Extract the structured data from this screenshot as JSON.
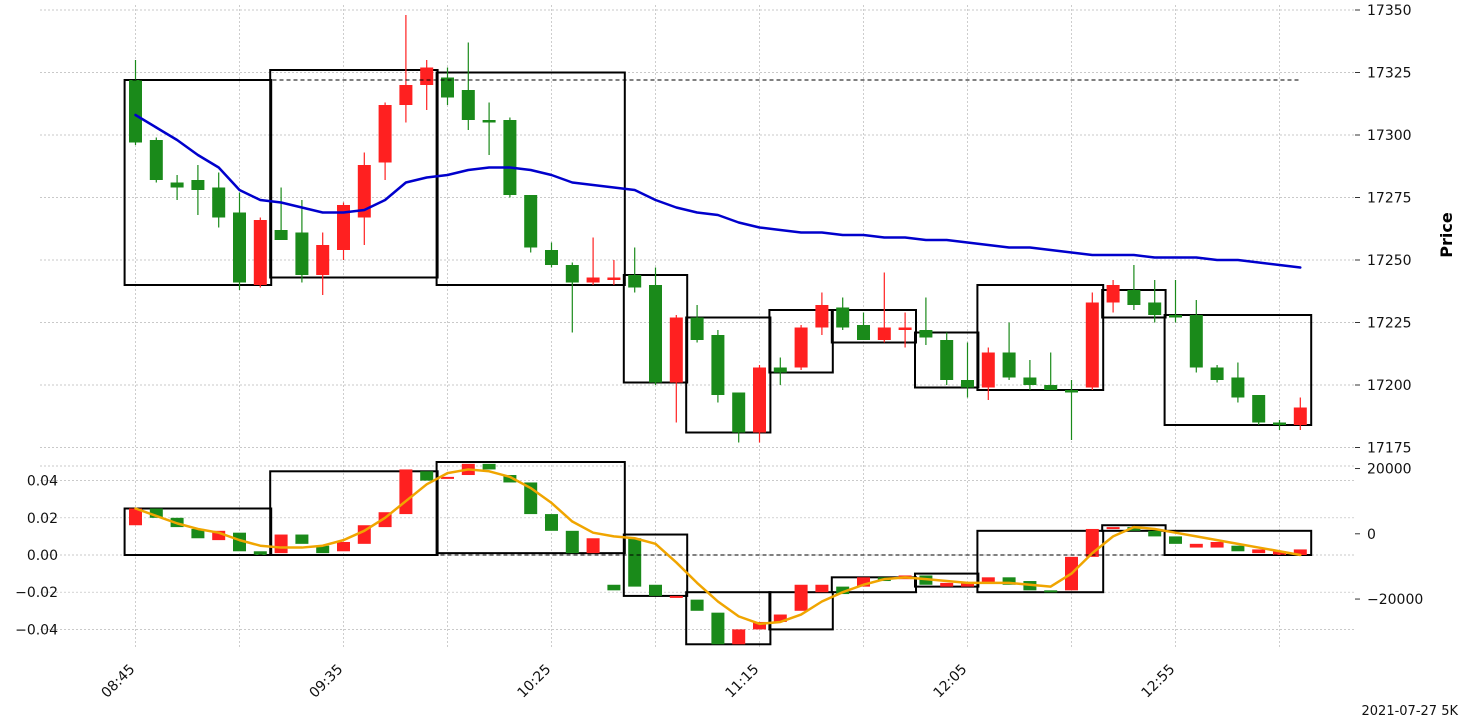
{
  "chart_data": [
    {
      "type": "candlestick",
      "panel": "price",
      "ylabel": "Price",
      "y_axis_side": "right",
      "ylim": [
        17170,
        17352
      ],
      "y_ticks": [
        17175,
        17200,
        17225,
        17250,
        17275,
        17300,
        17325,
        17350
      ],
      "grid": true,
      "candles": [
        {
          "o": 17297,
          "h": 17330,
          "l": 17296,
          "c": 17322,
          "color": "green"
        },
        {
          "o": 17282,
          "h": 17299,
          "l": 17281,
          "c": 17298,
          "color": "green"
        },
        {
          "o": 17279,
          "h": 17284,
          "l": 17274,
          "c": 17281,
          "color": "green"
        },
        {
          "o": 17278,
          "h": 17288,
          "l": 17268,
          "c": 17282,
          "color": "green"
        },
        {
          "o": 17267,
          "h": 17285,
          "l": 17263,
          "c": 17279,
          "color": "green"
        },
        {
          "o": 17241,
          "h": 17277,
          "l": 17238,
          "c": 17269,
          "color": "green"
        },
        {
          "o": 17266,
          "h": 17267,
          "l": 17239,
          "c": 17240,
          "color": "red"
        },
        {
          "o": 17262,
          "h": 17279,
          "l": 17258,
          "c": 17258,
          "color": "green"
        },
        {
          "o": 17244,
          "h": 17274,
          "l": 17241,
          "c": 17261,
          "color": "green"
        },
        {
          "o": 17256,
          "h": 17261,
          "l": 17236,
          "c": 17244,
          "color": "red"
        },
        {
          "o": 17272,
          "h": 17273,
          "l": 17250,
          "c": 17254,
          "color": "red"
        },
        {
          "o": 17288,
          "h": 17293,
          "l": 17256,
          "c": 17267,
          "color": "red"
        },
        {
          "o": 17312,
          "h": 17313,
          "l": 17282,
          "c": 17289,
          "color": "red"
        },
        {
          "o": 17320,
          "h": 17348,
          "l": 17305,
          "c": 17312,
          "color": "red"
        },
        {
          "o": 17327,
          "h": 17330,
          "l": 17310,
          "c": 17320,
          "color": "red"
        },
        {
          "o": 17315,
          "h": 17327,
          "l": 17312,
          "c": 17323,
          "color": "green"
        },
        {
          "o": 17306,
          "h": 17337,
          "l": 17302,
          "c": 17318,
          "color": "green"
        },
        {
          "o": 17305,
          "h": 17313,
          "l": 17292,
          "c": 17306,
          "color": "green"
        },
        {
          "o": 17276,
          "h": 17307,
          "l": 17275,
          "c": 17306,
          "color": "green"
        },
        {
          "o": 17255,
          "h": 17276,
          "l": 17253,
          "c": 17276,
          "color": "green"
        },
        {
          "o": 17248,
          "h": 17257,
          "l": 17247,
          "c": 17254,
          "color": "green"
        },
        {
          "o": 17241,
          "h": 17249,
          "l": 17221,
          "c": 17248,
          "color": "green"
        },
        {
          "o": 17241,
          "h": 17259,
          "l": 17240,
          "c": 17243,
          "color": "red"
        },
        {
          "o": 17243,
          "h": 17250,
          "l": 17240,
          "c": 17242,
          "color": "red"
        },
        {
          "o": 17239,
          "h": 17255,
          "l": 17237,
          "c": 17244,
          "color": "green"
        },
        {
          "o": 17201,
          "h": 17247,
          "l": 17200,
          "c": 17240,
          "color": "green"
        },
        {
          "o": 17227,
          "h": 17228,
          "l": 17185,
          "c": 17201,
          "color": "red"
        },
        {
          "o": 17218,
          "h": 17232,
          "l": 17217,
          "c": 17227,
          "color": "green"
        },
        {
          "o": 17196,
          "h": 17222,
          "l": 17193,
          "c": 17220,
          "color": "green"
        },
        {
          "o": 17181,
          "h": 17197,
          "l": 17177,
          "c": 17197,
          "color": "green"
        },
        {
          "o": 17207,
          "h": 17208,
          "l": 17177,
          "c": 17181,
          "color": "red"
        },
        {
          "o": 17205,
          "h": 17211,
          "l": 17200,
          "c": 17207,
          "color": "green"
        },
        {
          "o": 17223,
          "h": 17224,
          "l": 17206,
          "c": 17207,
          "color": "red"
        },
        {
          "o": 17232,
          "h": 17237,
          "l": 17220,
          "c": 17223,
          "color": "red"
        },
        {
          "o": 17223,
          "h": 17235,
          "l": 17222,
          "c": 17231,
          "color": "green"
        },
        {
          "o": 17218,
          "h": 17229,
          "l": 17218,
          "c": 17224,
          "color": "green"
        },
        {
          "o": 17223,
          "h": 17245,
          "l": 17217,
          "c": 17218,
          "color": "red"
        },
        {
          "o": 17222,
          "h": 17229,
          "l": 17215,
          "c": 17223,
          "color": "red"
        },
        {
          "o": 17219,
          "h": 17235,
          "l": 17216,
          "c": 17222,
          "color": "green"
        },
        {
          "o": 17202,
          "h": 17221,
          "l": 17200,
          "c": 17218,
          "color": "green"
        },
        {
          "o": 17199,
          "h": 17217,
          "l": 17195,
          "c": 17202,
          "color": "green"
        },
        {
          "o": 17213,
          "h": 17215,
          "l": 17194,
          "c": 17199,
          "color": "red"
        },
        {
          "o": 17203,
          "h": 17225,
          "l": 17202,
          "c": 17213,
          "color": "green"
        },
        {
          "o": 17200,
          "h": 17210,
          "l": 17198,
          "c": 17203,
          "color": "green"
        },
        {
          "o": 17198,
          "h": 17213,
          "l": 17198,
          "c": 17200,
          "color": "green"
        },
        {
          "o": 17197,
          "h": 17202,
          "l": 17178,
          "c": 17198,
          "color": "green"
        },
        {
          "o": 17233,
          "h": 17237,
          "l": 17198,
          "c": 17199,
          "color": "red"
        },
        {
          "o": 17240,
          "h": 17242,
          "l": 17229,
          "c": 17233,
          "color": "red"
        },
        {
          "o": 17232,
          "h": 17248,
          "l": 17230,
          "c": 17238,
          "color": "green"
        },
        {
          "o": 17228,
          "h": 17242,
          "l": 17225,
          "c": 17233,
          "color": "green"
        },
        {
          "o": 17227,
          "h": 17242,
          "l": 17225,
          "c": 17228,
          "color": "green"
        },
        {
          "o": 17207,
          "h": 17234,
          "l": 17205,
          "c": 17228,
          "color": "green"
        },
        {
          "o": 17202,
          "h": 17208,
          "l": 17201,
          "c": 17207,
          "color": "green"
        },
        {
          "o": 17195,
          "h": 17209,
          "l": 17193,
          "c": 17203,
          "color": "green"
        },
        {
          "o": 17185,
          "h": 17196,
          "l": 17184,
          "c": 17196,
          "color": "green"
        },
        {
          "o": 17184,
          "h": 17186,
          "l": 17182,
          "c": 17185,
          "color": "green"
        },
        {
          "o": 17191,
          "h": 17195,
          "l": 17182,
          "c": 17184,
          "color": "red"
        }
      ],
      "ma_line": {
        "color": "#0000cc",
        "values": [
          17308,
          17303,
          17298,
          17292,
          17287,
          17278,
          17274,
          17273,
          17271,
          17269,
          17269,
          17270,
          17274,
          17281,
          17283,
          17284,
          17286,
          17287,
          17287,
          17286,
          17284,
          17281,
          17280,
          17279,
          17278,
          17274,
          17271,
          17269,
          17268,
          17265,
          17263,
          17262,
          17261,
          17261,
          17260,
          17260,
          17259,
          17259,
          17258,
          17258,
          17257,
          17256,
          17255,
          17255,
          17254,
          17253,
          17252,
          17252,
          17252,
          17251,
          17251,
          17251,
          17250,
          17250,
          17249,
          17248,
          17247
        ]
      },
      "boxes": [
        {
          "start": 0,
          "end": 6,
          "low": 17240,
          "high": 17322
        },
        {
          "start": 7,
          "end": 14,
          "low": 17243,
          "high": 17326
        },
        {
          "start": 15,
          "end": 23,
          "low": 17240,
          "high": 17325
        },
        {
          "start": 24,
          "end": 26,
          "low": 17201,
          "high": 17244
        },
        {
          "start": 27,
          "end": 30,
          "low": 17181,
          "high": 17227
        },
        {
          "start": 31,
          "end": 33,
          "low": 17205,
          "high": 17230
        },
        {
          "start": 34,
          "end": 37,
          "low": 17217,
          "high": 17230
        },
        {
          "start": 38,
          "end": 40,
          "low": 17199,
          "high": 17221
        },
        {
          "start": 41,
          "end": 46,
          "low": 17198,
          "high": 17240
        },
        {
          "start": 47,
          "end": 49,
          "low": 17227,
          "high": 17238
        },
        {
          "start": 50,
          "end": 56,
          "low": 17184,
          "high": 17228
        }
      ],
      "reference_line": {
        "value": 17322,
        "style": "dashed"
      }
    },
    {
      "type": "candlestick",
      "panel": "indicator",
      "left_axis": {
        "ylim": [
          -0.05,
          0.05
        ],
        "ticks": [
          -0.04,
          -0.02,
          0.0,
          0.02,
          0.04
        ],
        "tick_labels": [
          "−0.04",
          "−0.02",
          "0.00",
          "0.02",
          "0.04"
        ]
      },
      "right_axis": {
        "ylim": [
          -35000,
          22000
        ],
        "ticks": [
          -20000,
          0,
          20000
        ],
        "tick_labels": [
          "−20000",
          "0",
          "20000"
        ]
      },
      "grid": true,
      "candles": [
        {
          "o": 0.025,
          "c": 0.016,
          "color": "red"
        },
        {
          "o": 0.02,
          "c": 0.025,
          "color": "green"
        },
        {
          "o": 0.015,
          "c": 0.02,
          "color": "green"
        },
        {
          "o": 0.009,
          "c": 0.014,
          "color": "green"
        },
        {
          "o": 0.013,
          "c": 0.008,
          "color": "red"
        },
        {
          "o": 0.002,
          "c": 0.012,
          "color": "green"
        },
        {
          "o": 0.002,
          "c": 0.0,
          "color": "green"
        },
        {
          "o": 0.011,
          "c": 0.001,
          "color": "red"
        },
        {
          "o": 0.006,
          "c": 0.011,
          "color": "green"
        },
        {
          "o": 0.001,
          "c": 0.005,
          "color": "green"
        },
        {
          "o": 0.007,
          "c": 0.002,
          "color": "red"
        },
        {
          "o": 0.016,
          "c": 0.006,
          "color": "red"
        },
        {
          "o": 0.023,
          "c": 0.015,
          "color": "red"
        },
        {
          "o": 0.046,
          "c": 0.022,
          "color": "red"
        },
        {
          "o": 0.04,
          "c": 0.045,
          "color": "green"
        },
        {
          "o": 0.041,
          "c": 0.042,
          "color": "red"
        },
        {
          "o": 0.049,
          "c": 0.043,
          "color": "red"
        },
        {
          "o": 0.049,
          "c": 0.046,
          "color": "green"
        },
        {
          "o": 0.039,
          "c": 0.043,
          "color": "green"
        },
        {
          "o": 0.022,
          "c": 0.039,
          "color": "green"
        },
        {
          "o": 0.013,
          "c": 0.022,
          "color": "green"
        },
        {
          "o": 0.001,
          "c": 0.013,
          "color": "green"
        },
        {
          "o": 0.009,
          "c": 0.001,
          "color": "red"
        },
        {
          "o": -0.019,
          "c": -0.016,
          "color": "green"
        },
        {
          "o": -0.017,
          "c": 0.009,
          "color": "green"
        },
        {
          "o": -0.022,
          "c": -0.016,
          "color": "green"
        },
        {
          "o": -0.023,
          "c": -0.022,
          "color": "red"
        },
        {
          "o": -0.03,
          "c": -0.024,
          "color": "green"
        },
        {
          "o": -0.048,
          "c": -0.031,
          "color": "green"
        },
        {
          "o": -0.04,
          "c": -0.048,
          "color": "red"
        },
        {
          "o": -0.036,
          "c": -0.04,
          "color": "red"
        },
        {
          "o": -0.032,
          "c": -0.036,
          "color": "red"
        },
        {
          "o": -0.016,
          "c": -0.03,
          "color": "red"
        },
        {
          "o": -0.02,
          "c": -0.016,
          "color": "red"
        },
        {
          "o": -0.017,
          "c": -0.021,
          "color": "green"
        },
        {
          "o": -0.012,
          "c": -0.017,
          "color": "red"
        },
        {
          "o": -0.014,
          "c": -0.012,
          "color": "green"
        },
        {
          "o": -0.011,
          "c": -0.013,
          "color": "red"
        },
        {
          "o": -0.016,
          "c": -0.011,
          "color": "green"
        },
        {
          "o": -0.015,
          "c": -0.017,
          "color": "red"
        },
        {
          "o": -0.015,
          "c": -0.017,
          "color": "red"
        },
        {
          "o": -0.012,
          "c": -0.015,
          "color": "red"
        },
        {
          "o": -0.016,
          "c": -0.012,
          "color": "green"
        },
        {
          "o": -0.019,
          "c": -0.014,
          "color": "green"
        },
        {
          "o": -0.02,
          "c": -0.019,
          "color": "green"
        },
        {
          "o": -0.001,
          "c": -0.019,
          "color": "red"
        },
        {
          "o": 0.014,
          "c": -0.001,
          "color": "red"
        },
        {
          "o": 0.014,
          "c": 0.015,
          "color": "red"
        },
        {
          "o": 0.013,
          "c": 0.015,
          "color": "green"
        },
        {
          "o": 0.01,
          "c": 0.013,
          "color": "green"
        },
        {
          "o": 0.006,
          "c": 0.01,
          "color": "green"
        },
        {
          "o": 0.006,
          "c": 0.004,
          "color": "red"
        },
        {
          "o": 0.007,
          "c": 0.004,
          "color": "red"
        },
        {
          "o": 0.002,
          "c": 0.005,
          "color": "green"
        },
        {
          "o": 0.003,
          "c": 0.001,
          "color": "red"
        },
        {
          "o": 0.002,
          "c": 0.0,
          "color": "red"
        },
        {
          "o": 0.003,
          "c": 0.0,
          "color": "red"
        }
      ],
      "smooth_line": {
        "color": "#f0a500",
        "values": [
          0.025,
          0.021,
          0.017,
          0.014,
          0.012,
          0.008,
          0.005,
          0.004,
          0.004,
          0.005,
          0.008,
          0.013,
          0.02,
          0.029,
          0.038,
          0.044,
          0.046,
          0.045,
          0.042,
          0.036,
          0.028,
          0.018,
          0.012,
          0.01,
          0.009,
          0.006,
          -0.004,
          -0.015,
          -0.025,
          -0.033,
          -0.037,
          -0.036,
          -0.032,
          -0.025,
          -0.02,
          -0.016,
          -0.013,
          -0.012,
          -0.013,
          -0.014,
          -0.015,
          -0.015,
          -0.015,
          -0.016,
          -0.017,
          -0.01,
          0.001,
          0.01,
          0.015,
          0.014,
          0.012,
          0.01,
          0.008,
          0.006,
          0.004,
          0.002,
          0.0
        ]
      },
      "boxes": [
        {
          "start": 0,
          "end": 6,
          "low": 0.0,
          "high": 0.025
        },
        {
          "start": 7,
          "end": 14,
          "low": 0.0,
          "high": 0.045
        },
        {
          "start": 15,
          "end": 23,
          "low": 0.001,
          "high": 0.05
        },
        {
          "start": 24,
          "end": 26,
          "low": -0.022,
          "high": 0.011
        },
        {
          "start": 27,
          "end": 30,
          "low": -0.048,
          "high": -0.02
        },
        {
          "start": 31,
          "end": 33,
          "low": -0.04,
          "high": -0.02
        },
        {
          "start": 34,
          "end": 37,
          "low": -0.02,
          "high": -0.012
        },
        {
          "start": 38,
          "end": 40,
          "low": -0.017,
          "high": -0.01
        },
        {
          "start": 41,
          "end": 46,
          "low": -0.02,
          "high": 0.013
        },
        {
          "start": 47,
          "end": 49,
          "low": 0.013,
          "high": 0.016
        },
        {
          "start": 50,
          "end": 56,
          "low": 0.0,
          "high": 0.013
        }
      ],
      "reference_line": {
        "value": 0.0,
        "style": "dashed"
      }
    }
  ],
  "x_axis": {
    "tick_labels": [
      "08:45",
      "09:35",
      "10:25",
      "11:15",
      "12:05",
      "12:55"
    ],
    "tick_indices": [
      0,
      10,
      20,
      30,
      40,
      50
    ]
  },
  "footer": "2021-07-27 5K",
  "colors": {
    "up": "#1a8a1a",
    "down": "#ff2020",
    "ma": "#0000cc",
    "signal": "#f0a500"
  }
}
